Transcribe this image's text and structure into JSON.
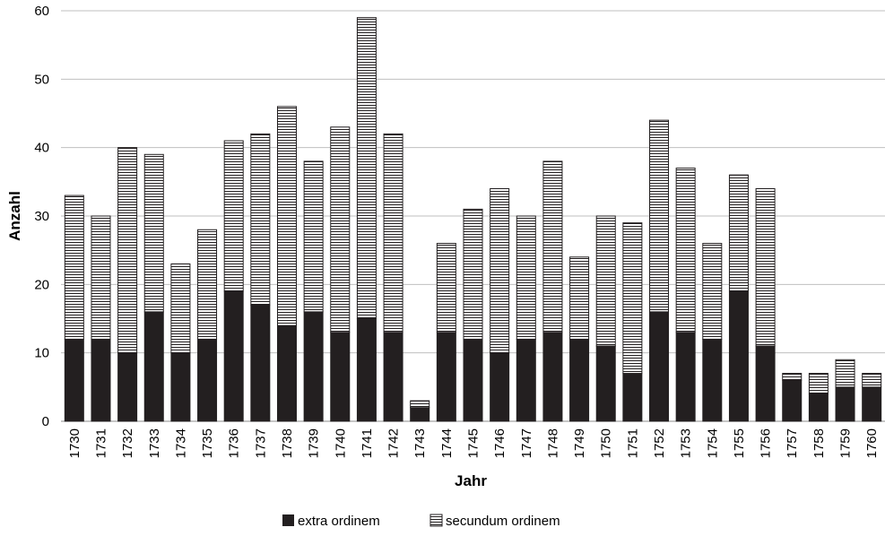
{
  "chart_data": {
    "type": "bar",
    "stacked": true,
    "title": "",
    "xlabel": "Jahr",
    "ylabel": "Anzahl",
    "ylim": [
      0,
      60
    ],
    "yticks": [
      0,
      10,
      20,
      30,
      40,
      50,
      60
    ],
    "grid": true,
    "legend_position": "bottom",
    "categories": [
      "1730",
      "1731",
      "1732",
      "1733",
      "1734",
      "1735",
      "1736",
      "1737",
      "1738",
      "1739",
      "1740",
      "1741",
      "1742",
      "1743",
      "1744",
      "1745",
      "1746",
      "1747",
      "1748",
      "1749",
      "1750",
      "1751",
      "1752",
      "1753",
      "1754",
      "1755",
      "1756",
      "1757",
      "1758",
      "1759",
      "1760"
    ],
    "series": [
      {
        "name": "extra ordinem",
        "fill": "solid-black",
        "values": [
          12,
          12,
          10,
          16,
          10,
          12,
          19,
          17,
          14,
          16,
          13,
          15,
          13,
          2,
          13,
          12,
          10,
          12,
          13,
          12,
          11,
          7,
          16,
          13,
          12,
          19,
          11,
          6,
          4,
          5,
          5
        ]
      },
      {
        "name": "secundum ordinem",
        "fill": "horizontal-stripes",
        "values": [
          21,
          18,
          30,
          23,
          13,
          16,
          22,
          25,
          32,
          22,
          30,
          44,
          29,
          1,
          13,
          19,
          24,
          18,
          25,
          12,
          19,
          22,
          28,
          24,
          14,
          17,
          23,
          1,
          3,
          4,
          2
        ]
      }
    ],
    "colors": {
      "solid": "#231f20",
      "stripe": "#231f20",
      "grid": "#bfbfbf"
    }
  }
}
